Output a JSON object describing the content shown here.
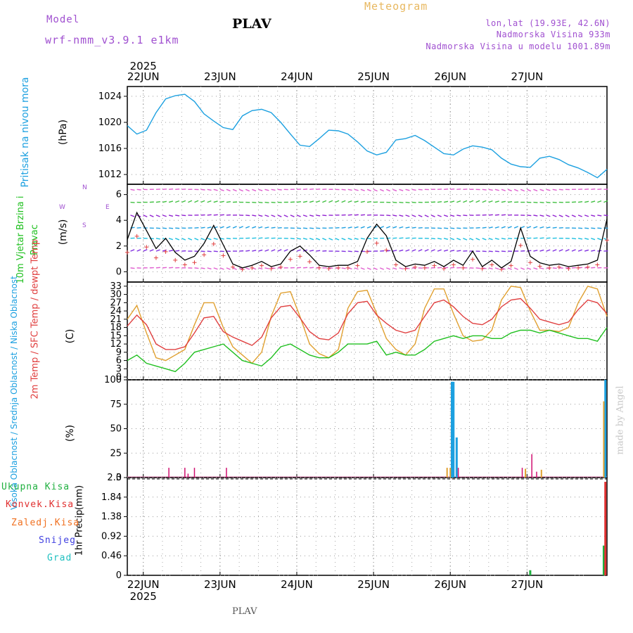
{
  "header": {
    "model_label": "Model",
    "model_name": "wrf-nmm_v3.9.1  e1km",
    "station": "PLAV",
    "product": "Meteogram",
    "lonlat": "lon,lat (19.93E, 42.6N)",
    "altitude": "Nadmorska Visina 933m",
    "model_altitude": "Nadmorska Visina u modelu 1001.89m"
  },
  "time_axis": {
    "year": "2025",
    "days": [
      "22JUN",
      "23JUN",
      "24JUN",
      "25JUN",
      "26JUN",
      "27JUN"
    ],
    "start_hour_before_first_day": 5,
    "total_hours": 150
  },
  "footer": {
    "station": "PLAV",
    "credit": "made by Angel"
  },
  "colors": {
    "pressure": "#1ca0e0",
    "temp2m": "#e04040",
    "sfc": "#e0a030",
    "dewpt": "#20c020",
    "high_cloud": "#1ca0e0",
    "mid_cloud": "#e0a030",
    "low_cloud": "#d01070",
    "total_precip": "#20b040",
    "conv_precip": "#e03030",
    "freezing": "#f07020",
    "snow": "#4040e0",
    "hail": "#20c0c0"
  },
  "chart_data": [
    {
      "type": "line",
      "panel": "pressure",
      "ylabel": "Pritisak na nivou mora",
      "unit": "(hPa)",
      "yticks": [
        "1024",
        "1020",
        "1016",
        "1012"
      ],
      "ylim": [
        1010.5,
        1025.5
      ],
      "x": [
        0,
        3,
        6,
        9,
        12,
        15,
        18,
        21,
        24,
        27,
        30,
        33,
        36,
        39,
        42,
        45,
        48,
        51,
        54,
        57,
        60,
        63,
        66,
        69,
        72,
        75,
        78,
        81,
        84,
        87,
        90,
        93,
        96,
        99,
        102,
        105,
        108,
        111,
        114,
        117,
        120,
        123,
        126,
        129,
        132,
        135,
        138,
        141,
        144,
        147,
        150
      ],
      "series": [
        {
          "name": "Pritisak",
          "values": [
            1019.5,
            1018.2,
            1018.8,
            1021.5,
            1023.6,
            1024.1,
            1024.3,
            1023.2,
            1021.3,
            1020.2,
            1019.2,
            1018.9,
            1021.0,
            1021.8,
            1022.0,
            1021.5,
            1020.0,
            1018.2,
            1016.5,
            1016.3,
            1017.5,
            1018.8,
            1018.7,
            1018.2,
            1017.0,
            1015.6,
            1015.0,
            1015.4,
            1017.3,
            1017.5,
            1018.0,
            1017.2,
            1016.2,
            1015.2,
            1015.0,
            1015.9,
            1016.4,
            1016.2,
            1015.8,
            1014.5,
            1013.6,
            1013.2,
            1013.1,
            1014.5,
            1014.8,
            1014.3,
            1013.5,
            1013.0,
            1012.3,
            1011.5,
            1012.8
          ]
        }
      ]
    },
    {
      "type": "line",
      "panel": "wind",
      "ylabel": "10m Vjetar Brzina i Pravac",
      "unit": "(m/s)",
      "compass": [
        "N",
        "W",
        "E",
        "S"
      ],
      "yticks": [
        "0",
        "2",
        "4",
        "6"
      ],
      "ylim": [
        -0.8,
        6.8
      ],
      "x": [
        0,
        3,
        6,
        9,
        12,
        15,
        18,
        21,
        24,
        27,
        30,
        33,
        36,
        39,
        42,
        45,
        48,
        51,
        54,
        57,
        60,
        63,
        66,
        69,
        72,
        75,
        78,
        81,
        84,
        87,
        90,
        93,
        96,
        99,
        102,
        105,
        108,
        111,
        114,
        117,
        120,
        123,
        126,
        129,
        132,
        135,
        138,
        141,
        144,
        147,
        150
      ],
      "series": [
        {
          "name": "Brzina",
          "values": [
            2.5,
            4.6,
            3.2,
            1.8,
            2.6,
            1.5,
            0.9,
            1.2,
            2.2,
            3.6,
            2.1,
            0.6,
            0.3,
            0.5,
            0.8,
            0.4,
            0.6,
            1.6,
            2.0,
            1.3,
            0.5,
            0.4,
            0.5,
            0.5,
            0.8,
            2.6,
            3.7,
            2.8,
            0.9,
            0.4,
            0.6,
            0.5,
            0.8,
            0.4,
            0.9,
            0.5,
            1.6,
            0.4,
            0.9,
            0.3,
            0.8,
            3.4,
            1.2,
            0.7,
            0.5,
            0.6,
            0.4,
            0.5,
            0.6,
            0.9,
            4.1
          ]
        }
      ]
    },
    {
      "type": "line",
      "panel": "temperature",
      "ylabel": "2m Temp / SFC Temp / dewpt Temp",
      "unit": "(C)",
      "yticks": [
        "0",
        "3",
        "6",
        "9",
        "12",
        "15",
        "18",
        "21",
        "24",
        "27",
        "30",
        "33"
      ],
      "ylim": [
        -1,
        34.5
      ],
      "x": [
        0,
        3,
        6,
        9,
        12,
        15,
        18,
        21,
        24,
        27,
        30,
        33,
        36,
        39,
        42,
        45,
        48,
        51,
        54,
        57,
        60,
        63,
        66,
        69,
        72,
        75,
        78,
        81,
        84,
        87,
        90,
        93,
        96,
        99,
        102,
        105,
        108,
        111,
        114,
        117,
        120,
        123,
        126,
        129,
        132,
        135,
        138,
        141,
        144,
        147,
        150
      ],
      "series": [
        {
          "name": "2m Temp",
          "values": [
            18.5,
            22.5,
            19,
            12,
            10,
            10,
            11,
            16,
            21.5,
            22,
            16.5,
            14.5,
            13,
            11.5,
            14.5,
            21.5,
            25.5,
            26,
            21.5,
            16.5,
            14,
            13.5,
            16,
            23,
            27,
            27.5,
            22.5,
            19.5,
            17,
            16,
            17,
            22,
            27,
            28,
            25.5,
            22,
            19.5,
            19,
            21,
            25.5,
            28,
            28.5,
            25,
            21,
            20,
            19,
            20,
            24.5,
            28,
            27,
            23
          ]
        },
        {
          "name": "SFC Temp",
          "values": [
            21,
            26,
            16,
            7,
            6,
            8,
            10,
            19,
            27,
            27,
            18,
            11,
            8,
            5,
            9,
            22,
            30.5,
            31,
            22,
            12,
            8.5,
            7,
            10,
            25,
            31,
            31.5,
            23,
            14,
            10,
            8,
            12,
            25,
            32,
            32,
            23,
            15,
            13,
            13.5,
            17,
            28,
            33,
            32.5,
            24,
            17,
            17,
            16.5,
            18,
            27,
            33,
            32,
            22
          ]
        },
        {
          "name": "dewpt Temp",
          "values": [
            6,
            8,
            5,
            4,
            3,
            2,
            5,
            9,
            10,
            11,
            12,
            9,
            6,
            5,
            4,
            7,
            11,
            12,
            10,
            8,
            7,
            7,
            9,
            12,
            12,
            12,
            13,
            8,
            9,
            8,
            8,
            10,
            13,
            14,
            15,
            14,
            15,
            15,
            14,
            14,
            16,
            17,
            17,
            16,
            17,
            16,
            15,
            14,
            14,
            13,
            18
          ]
        }
      ]
    },
    {
      "type": "bar",
      "panel": "clouds",
      "ylabel": "Visoka Oblacnost / Srednja Oblacnost / Niska Oblacnost",
      "unit": "(%)",
      "yticks": [
        "0",
        "25",
        "50",
        "75",
        "100"
      ],
      "ylim": [
        0,
        100
      ],
      "series": [
        {
          "name": "Visoka Oblacnost",
          "bars": [
            [
              101.5,
              98
            ],
            [
              102,
              98
            ],
            [
              103,
              41
            ],
            [
              149.5,
              100
            ]
          ]
        },
        {
          "name": "Srednja Oblacnost",
          "bars": [
            [
              100,
              10
            ],
            [
              101,
              10
            ],
            [
              124.5,
              9
            ],
            [
              129.5,
              8
            ],
            [
              149,
              78
            ]
          ]
        },
        {
          "name": "Niska Oblacnost",
          "bars": [
            [
              13,
              10
            ],
            [
              18,
              10
            ],
            [
              19,
              4
            ],
            [
              21,
              10
            ],
            [
              31,
              10
            ],
            [
              103.5,
              10
            ],
            [
              123.5,
              10
            ],
            [
              126.5,
              24
            ],
            [
              128,
              6
            ]
          ]
        }
      ]
    },
    {
      "type": "bar",
      "panel": "precipitation",
      "ylabel": "1hr Precip",
      "unit": "(mm)",
      "yticks": [
        "0",
        "0.46",
        "0.92",
        "1.38",
        "1.84",
        "2.3"
      ],
      "ylim": [
        0,
        2.3
      ],
      "legend": [
        "Ukupna Kisa",
        "Konvek.Kisa",
        "Zaledj.Kisa",
        "Snijeg",
        "Grad"
      ],
      "series": [
        {
          "name": "Ukupna Kisa",
          "bars": [
            [
              126,
              0.12
            ],
            [
              149,
              0.7
            ]
          ]
        },
        {
          "name": "Konvek.Kisa",
          "bars": [
            [
              149.5,
              2.2
            ]
          ]
        }
      ]
    }
  ]
}
